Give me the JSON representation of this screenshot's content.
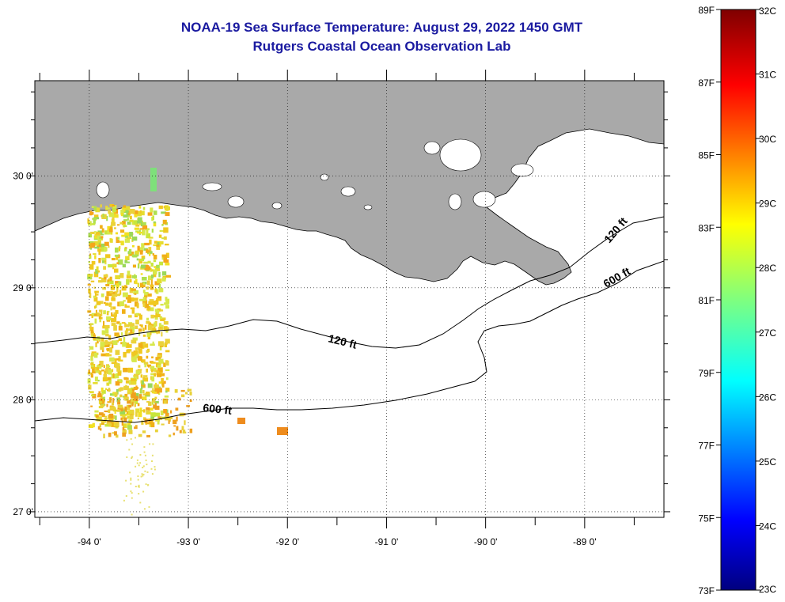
{
  "title": "NOAA-19 Sea Surface Temperature:  August 29, 2022 1450 GMT",
  "subtitle": "Rutgers Coastal Ocean Observation Lab",
  "map": {
    "lon_ticks": [
      {
        "lon": -94,
        "label": "-94 0'"
      },
      {
        "lon": -93,
        "label": "-93 0'"
      },
      {
        "lon": -92,
        "label": "-92 0'"
      },
      {
        "lon": -91,
        "label": "-91 0'"
      },
      {
        "lon": -90,
        "label": "-90 0'"
      },
      {
        "lon": -89,
        "label": "-89 0'"
      }
    ],
    "lat_ticks": [
      {
        "lat": 30,
        "label": "30 0'"
      },
      {
        "lat": 29,
        "label": "29 0'"
      },
      {
        "lat": 28,
        "label": "28 0'"
      },
      {
        "lat": 27,
        "label": "27 0'"
      }
    ],
    "lon_range": [
      -94.55,
      -88.2
    ],
    "lat_range": [
      26.95,
      30.85
    ],
    "land_color": "#a9a9a9",
    "contours": [
      {
        "label": "120 ft"
      },
      {
        "label": "600 ft"
      },
      {
        "label": "120 ft"
      },
      {
        "label": "600 ft"
      }
    ]
  },
  "colorbar": {
    "f_labels": [
      "89F",
      "87F",
      "85F",
      "83F",
      "81F",
      "79F",
      "77F",
      "75F",
      "73F"
    ],
    "c_labels": [
      "32C",
      "31C",
      "30C",
      "29C",
      "28C",
      "27C",
      "26C",
      "25C",
      "24C",
      "23C"
    ]
  }
}
